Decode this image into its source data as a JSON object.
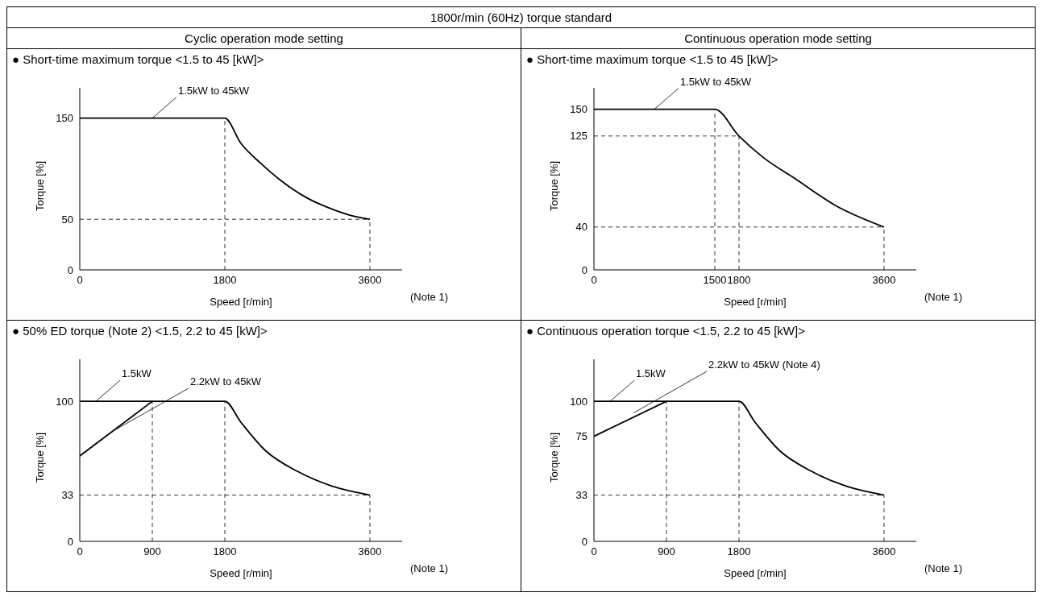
{
  "chart_data": [
    {
      "type": "line",
      "title": "● Short-time maximum torque <1.5 to 45 [kW]>",
      "xlabel": "Speed [r/min]",
      "ylabel": "Torque [%]",
      "xlim": [
        0,
        4000
      ],
      "ylim": [
        0,
        180
      ],
      "xticks": [
        0,
        1800,
        3600
      ],
      "yticks": [
        0,
        50,
        150
      ],
      "series": [
        {
          "color": "#000000",
          "x": [
            0,
            1800,
            2000,
            2250,
            2500,
            2800,
            3100,
            3400,
            3600
          ],
          "values": [
            150,
            150,
            125,
            105,
            88,
            72,
            61,
            53,
            50
          ]
        }
      ],
      "ref_lines": [
        {
          "axis": "x",
          "value": 1800,
          "line_style": "dashed"
        },
        {
          "axis": "x",
          "value": 3600,
          "line_style": "dashed"
        },
        {
          "axis": "y",
          "value": 50,
          "line_style": "dashed"
        }
      ],
      "annotations": [
        "1800r/min (60Hz) torque standard",
        "Cyclic operation mode setting",
        {
          "text": "1.5kW to 45kW",
          "x": 900,
          "y": 150
        },
        "(Note 1)"
      ]
    },
    {
      "type": "line",
      "title": "● Short-time maximum torque <1.5 to 45 [kW]>",
      "xlabel": "Speed [r/min]",
      "ylabel": "Torque [%]",
      "xlim": [
        0,
        4000
      ],
      "ylim": [
        0,
        170
      ],
      "xticks": [
        0,
        1500,
        1800,
        3600
      ],
      "yticks": [
        0,
        40,
        125,
        150
      ],
      "series": [
        {
          "color": "#000000",
          "x": [
            0,
            1500,
            1800,
            2100,
            2500,
            3000,
            3600
          ],
          "values": [
            150,
            150,
            125,
            105,
            85,
            60,
            40
          ]
        }
      ],
      "ref_lines": [
        {
          "axis": "x",
          "value": 1500,
          "line_style": "dashed"
        },
        {
          "axis": "x",
          "value": 1800,
          "line_style": "dashed"
        },
        {
          "axis": "x",
          "value": 3600,
          "line_style": "dashed"
        },
        {
          "axis": "y",
          "value": 125,
          "line_style": "dashed"
        },
        {
          "axis": "y",
          "value": 40,
          "line_style": "dashed"
        }
      ],
      "annotations": [
        "Continuous operation mode setting",
        {
          "text": "1.5kW to 45kW",
          "x": 750,
          "y": 150
        },
        "(Note 1)"
      ]
    },
    {
      "type": "line",
      "title": "● 50% ED torque (Note 2) <1.5, 2.2 to 45 [kW]>",
      "xlabel": "Speed [r/min]",
      "ylabel": "Torque [%]",
      "xlim": [
        0,
        4000
      ],
      "ylim": [
        0,
        130
      ],
      "xticks": [
        0,
        900,
        1800,
        3600
      ],
      "yticks": [
        0,
        33,
        100
      ],
      "series": [
        {
          "color": "#000000",
          "x": [
            0,
            1800,
            2000,
            2300,
            2700,
            3100,
            3600
          ],
          "values": [
            100,
            100,
            85,
            65,
            50,
            40,
            33
          ]
        },
        {
          "color": "#000000",
          "x": [
            0,
            900
          ],
          "values": [
            61,
            100
          ]
        }
      ],
      "ref_lines": [
        {
          "axis": "x",
          "value": 900,
          "line_style": "dashed"
        },
        {
          "axis": "x",
          "value": 1800,
          "line_style": "dashed"
        },
        {
          "axis": "x",
          "value": 3600,
          "line_style": "dashed"
        },
        {
          "axis": "y",
          "value": 33,
          "line_style": "dashed"
        }
      ],
      "annotations": [
        {
          "text": "1.5kW",
          "x": 200,
          "y": 100
        },
        {
          "text": "2.2kW to 45kW",
          "x": 450,
          "y": 80
        },
        "(Note 1)"
      ]
    },
    {
      "type": "line",
      "title": "● Continuous operation torque <1.5, 2.2 to 45 [kW]>",
      "xlabel": "Speed [r/min]",
      "ylabel": "Torque [%]",
      "xlim": [
        0,
        4000
      ],
      "ylim": [
        0,
        130
      ],
      "xticks": [
        0,
        900,
        1800,
        3600
      ],
      "yticks": [
        0,
        33,
        75,
        100
      ],
      "series": [
        {
          "color": "#000000",
          "x": [
            0,
            1800,
            2000,
            2300,
            2700,
            3100,
            3600
          ],
          "values": [
            100,
            100,
            85,
            65,
            50,
            40,
            33
          ]
        },
        {
          "color": "#000000",
          "x": [
            0,
            900
          ],
          "values": [
            75,
            100
          ]
        }
      ],
      "ref_lines": [
        {
          "axis": "x",
          "value": 900,
          "line_style": "dashed"
        },
        {
          "axis": "x",
          "value": 1800,
          "line_style": "dashed"
        },
        {
          "axis": "x",
          "value": 3600,
          "line_style": "dashed"
        },
        {
          "axis": "y",
          "value": 33,
          "line_style": "dashed"
        }
      ],
      "annotations": [
        {
          "text": "1.5kW",
          "x": 200,
          "y": 100
        },
        {
          "text": "2.2kW to 45kW (Note 4)",
          "x": 500,
          "y": 92
        },
        "(Note 1)"
      ]
    }
  ]
}
